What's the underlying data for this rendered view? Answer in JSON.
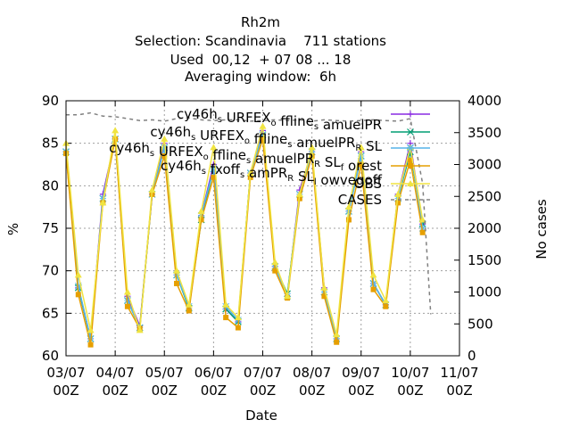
{
  "chart_data": {
    "type": "line",
    "title": [
      "Rh2m",
      "Selection: Scandinavia    711 stations",
      "Used  00,12  + 07 08 ... 18",
      "Averaging window:  6h"
    ],
    "xlabel": "Date",
    "ylabel": "%",
    "y2label": "No cases",
    "ylim": [
      60,
      90
    ],
    "y2lim": [
      0,
      4000
    ],
    "xlim": [
      0,
      192
    ],
    "grid": true,
    "legend_position": "top-right",
    "x_tick_labels": [
      [
        "03/07",
        "00Z"
      ],
      [
        "04/07",
        "00Z"
      ],
      [
        "05/07",
        "00Z"
      ],
      [
        "06/07",
        "00Z"
      ],
      [
        "07/07",
        "00Z"
      ],
      [
        "08/07",
        "00Z"
      ],
      [
        "09/07",
        "00Z"
      ],
      [
        "10/07",
        "00Z"
      ],
      [
        "11/07",
        "00Z"
      ]
    ],
    "y_ticks": [
      60,
      65,
      70,
      75,
      80,
      85,
      90
    ],
    "y2_ticks": [
      0,
      500,
      1000,
      1500,
      2000,
      2500,
      3000,
      3500,
      4000
    ],
    "x_hours": [
      0,
      6,
      12,
      18,
      24,
      30,
      36,
      42,
      48,
      54,
      60,
      66,
      72,
      78,
      84,
      90,
      96,
      102,
      108,
      114,
      120,
      126,
      132,
      138,
      144,
      150,
      156,
      162,
      168,
      174
    ],
    "series": [
      {
        "name": "cy46h_s URFEX_o ffline_s amuelPR",
        "color": "#8a2be2",
        "marker": "plus",
        "values": [
          84.0,
          68.0,
          62.0,
          79.0,
          85.5,
          67.0,
          63.5,
          79.0,
          85.0,
          69.5,
          65.8,
          76.5,
          82.5,
          65.5,
          64.0,
          81.5,
          86.5,
          70.5,
          67.0,
          79.5,
          84.0,
          68.0,
          62.0,
          77.0,
          84.0,
          68.5,
          66.0,
          79.0,
          85.0,
          75.5
        ]
      },
      {
        "name": "cy46h_s URFEX_o ffline_s amuelPR_R SL",
        "color": "#009e73",
        "marker": "x",
        "values": [
          84.0,
          68.0,
          62.0,
          78.5,
          85.5,
          66.5,
          63.3,
          79.0,
          84.5,
          69.5,
          65.6,
          76.0,
          82.0,
          65.5,
          64.0,
          81.5,
          86.0,
          70.5,
          67.3,
          79.0,
          84.0,
          67.5,
          62.0,
          77.0,
          83.5,
          68.5,
          66.0,
          78.5,
          84.0,
          75.5
        ]
      },
      {
        "name": "cy46h_s URFEX_o ffline_s amuelPR_R SL_f orest",
        "color": "#56b4e9",
        "marker": "star",
        "values": [
          84.0,
          68.2,
          62.0,
          78.5,
          85.5,
          66.5,
          63.3,
          79.0,
          84.5,
          69.5,
          65.8,
          76.5,
          82.0,
          65.8,
          64.2,
          81.5,
          86.0,
          70.5,
          67.0,
          79.0,
          84.0,
          67.5,
          62.0,
          77.0,
          83.5,
          68.5,
          66.0,
          78.5,
          84.5,
          75.0
        ]
      },
      {
        "name": "cy46h_s fxoff_s amPR_R SL_l owvegoff",
        "color": "#e69f00",
        "marker": "box",
        "values": [
          83.8,
          67.2,
          61.3,
          78.0,
          85.5,
          65.8,
          63.2,
          79.0,
          83.5,
          68.5,
          65.3,
          76.0,
          81.0,
          64.5,
          63.3,
          81.0,
          85.5,
          70.0,
          66.8,
          78.5,
          83.5,
          67.0,
          61.6,
          76.0,
          82.5,
          67.8,
          65.8,
          78.0,
          83.0,
          74.5
        ]
      },
      {
        "name": "OBS",
        "color": "#f0e442",
        "marker": "triangle",
        "values": [
          85.0,
          69.5,
          63.0,
          78.0,
          86.5,
          67.5,
          63.0,
          79.5,
          85.5,
          70.0,
          66.0,
          77.0,
          84.5,
          66.0,
          64.5,
          81.5,
          87.0,
          71.0,
          67.0,
          79.0,
          84.5,
          68.0,
          62.5,
          77.5,
          84.5,
          69.5,
          66.5,
          79.0,
          84.5,
          76.0
        ]
      },
      {
        "name": "CASES",
        "color": "#808080",
        "axis": "y2",
        "dash": true,
        "x_hours": [
          0,
          6,
          12,
          18,
          24,
          30,
          36,
          42,
          48,
          54,
          60,
          66,
          72,
          78,
          84,
          90,
          96,
          102,
          108,
          114,
          120,
          126,
          132,
          138,
          144,
          150,
          156,
          162,
          168,
          174,
          178
        ],
        "values": [
          3780,
          3780,
          3810,
          3760,
          3750,
          3720,
          3690,
          3700,
          3680,
          3720,
          3730,
          3700,
          3690,
          3700,
          3700,
          3680,
          3690,
          3700,
          3690,
          3700,
          3680,
          3700,
          3690,
          3680,
          3690,
          3700,
          3690,
          3680,
          3720,
          2700,
          650
        ]
      }
    ]
  }
}
